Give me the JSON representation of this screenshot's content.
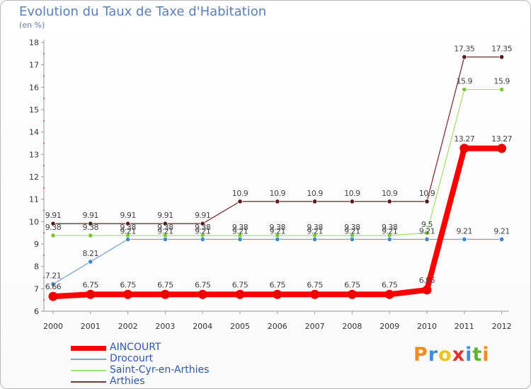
{
  "title": "Evolution du Taux de Taxe d'Habitation",
  "subtitle": "(en %)",
  "brand": {
    "text": "Proxiti",
    "letters": [
      {
        "ch": "P",
        "color": "#f28c1e"
      },
      {
        "ch": "r",
        "color": "#3d8fd6"
      },
      {
        "ch": "o",
        "color": "#e8c51a"
      },
      {
        "ch": "x",
        "color": "#e0322a"
      },
      {
        "ch": "i",
        "color": "#3d8fd6"
      },
      {
        "ch": "t",
        "color": "#5cb531"
      },
      {
        "ch": "i",
        "color": "#f28c1e"
      }
    ]
  },
  "chart_data": {
    "type": "line",
    "title": "Evolution du Taux de Taxe d'Habitation",
    "ylabel": "(en %)",
    "xlabel": "",
    "x": [
      "2000",
      "2001",
      "2002",
      "2003",
      "2004",
      "2005",
      "2006",
      "2007",
      "2008",
      "2009",
      "2010",
      "2011",
      "2012"
    ],
    "ylim": [
      6,
      18
    ],
    "yticks": [
      6,
      7,
      8,
      9,
      10,
      11,
      12,
      13,
      14,
      15,
      16,
      17,
      18
    ],
    "grid": false,
    "legend_position": "bottom-left",
    "series": [
      {
        "name": "Arthies",
        "color": "#7a3535",
        "point_color": "#5a1a1a",
        "values": [
          9.91,
          9.91,
          9.91,
          9.91,
          9.91,
          10.9,
          10.9,
          10.9,
          10.9,
          10.9,
          10.9,
          17.35,
          17.35
        ],
        "labels": [
          "9.91",
          "9.91",
          "9.91",
          "9.91",
          "9.91",
          "10.9",
          "10.9",
          "10.9",
          "10.9",
          "10.9",
          "10.9",
          "17.35",
          "17.35"
        ]
      },
      {
        "name": "Saint-Cyr-en-Arthies",
        "color": "#a8e07a",
        "point_color": "#7cc43c",
        "values": [
          9.38,
          9.38,
          9.38,
          9.38,
          9.38,
          9.38,
          9.38,
          9.38,
          9.38,
          9.38,
          9.5,
          15.9,
          15.9
        ],
        "labels": [
          "9.38",
          "9.38",
          "9.38",
          "9.38",
          "9.38",
          "9.38",
          "9.38",
          "9.38",
          "9.38",
          "9.38",
          "9.5",
          "15.9",
          "15.9"
        ]
      },
      {
        "name": "Drocourt",
        "color": "#7fa6cc",
        "point_color": "#3f86c4",
        "values": [
          7.21,
          8.21,
          9.21,
          9.21,
          9.21,
          9.21,
          9.21,
          9.21,
          9.21,
          9.21,
          9.21,
          9.21,
          9.21
        ],
        "labels": [
          "7.21",
          "8.21",
          "9.21",
          "9.21",
          "9.21",
          "9.21",
          "9.21",
          "9.21",
          "9.21",
          "9.21",
          "9.21",
          "9.21",
          "9.21"
        ]
      },
      {
        "name": "AINCOURT",
        "color": "#ff0000",
        "point_color": "#ee0000",
        "values": [
          6.66,
          6.75,
          6.75,
          6.75,
          6.75,
          6.75,
          6.75,
          6.75,
          6.75,
          6.75,
          6.95,
          13.27,
          13.27
        ],
        "labels": [
          "6.66",
          "6.75",
          "6.75",
          "6.75",
          "6.75",
          "6.75",
          "6.75",
          "6.75",
          "6.75",
          "6.75",
          "6.95",
          "13.27",
          "13.27"
        ]
      }
    ],
    "legend": [
      {
        "name": "AINCOURT",
        "color": "#ff0000",
        "thick": true
      },
      {
        "name": "Drocourt",
        "color": "#7fa6cc",
        "thick": false
      },
      {
        "name": "Saint-Cyr-en-Arthies",
        "color": "#a8e07a",
        "thick": false
      },
      {
        "name": "Arthies",
        "color": "#7a3535",
        "thick": false
      }
    ]
  }
}
